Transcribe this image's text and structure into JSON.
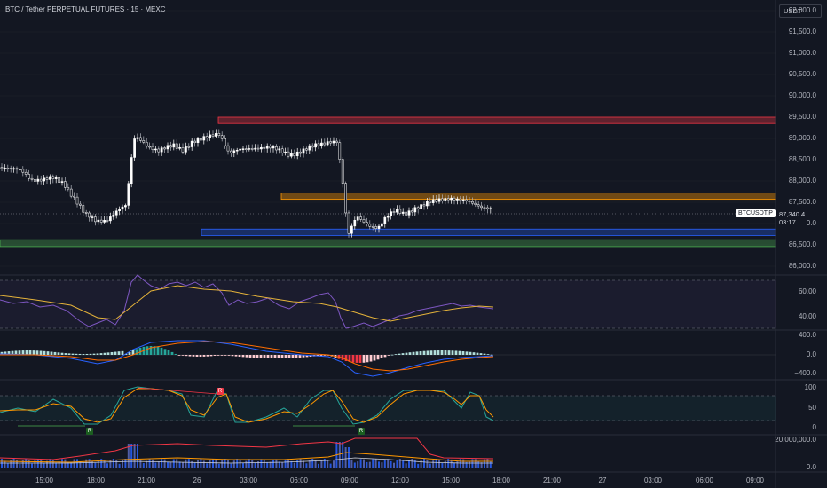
{
  "header": {
    "title": "BTC / Tether PERPETUAL FUTURES · 15 · MEXC",
    "currency_button": "USDT"
  },
  "price_axis": {
    "labels": [
      "92,000.0",
      "91,500.0",
      "91,000.0",
      "90,500.0",
      "90,000.0",
      "89,500.0",
      "89,000.0",
      "88,500.0",
      "88,000.0",
      "87,500.0",
      "87,000.0",
      "86,500.0",
      "86,000.0"
    ]
  },
  "last_price": {
    "symbol": "BTCUSDT.P",
    "price": "87,340.4",
    "countdown": "03:17"
  },
  "rsi_axis": {
    "labels": [
      "60.00",
      "40.00"
    ]
  },
  "macd_axis": {
    "labels": [
      "400.0",
      "0.0",
      "−400.0"
    ]
  },
  "stoch_axis": {
    "labels": [
      "100",
      "50",
      "0"
    ]
  },
  "volume_axis": {
    "labels": [
      "20,000,000.0",
      "0.0"
    ]
  },
  "time_axis": {
    "labels": [
      "15:00",
      "18:00",
      "21:00",
      "26",
      "03:00",
      "06:00",
      "09:00",
      "12:00",
      "15:00",
      "18:00",
      "21:00",
      "27",
      "03:00",
      "06:00",
      "09:00"
    ]
  },
  "signal_markers": [
    "R",
    "R",
    "R"
  ],
  "colors": {
    "background": "#131722",
    "up": "#ffffff",
    "zone_red": "#f23645",
    "zone_orange": "#ff9800",
    "zone_blue": "#2962ff",
    "zone_green": "#4caf50"
  },
  "chart_data": {
    "type": "candlestick",
    "title": "BTC / Tether PERPETUAL FUTURES · 15 · MEXC",
    "ylim": [
      86000,
      92000
    ],
    "last_price": 87340.4,
    "x_ticks": [
      "15:00",
      "18:00",
      "21:00",
      "26",
      "03:00",
      "06:00",
      "09:00",
      "12:00",
      "15:00",
      "18:00",
      "21:00",
      "27",
      "03:00",
      "06:00",
      "09:00"
    ],
    "path": [
      [
        0,
        88320
      ],
      [
        12,
        88260
      ],
      [
        24,
        88250
      ],
      [
        36,
        88050
      ],
      [
        48,
        88020
      ],
      [
        60,
        88050
      ],
      [
        72,
        87950
      ],
      [
        84,
        87600
      ],
      [
        96,
        87200
      ],
      [
        108,
        87050
      ],
      [
        120,
        87100
      ],
      [
        132,
        87300
      ],
      [
        142,
        87400
      ],
      [
        148,
        88500
      ],
      [
        152,
        89050
      ],
      [
        158,
        89000
      ],
      [
        166,
        88850
      ],
      [
        178,
        88680
      ],
      [
        186,
        88750
      ],
      [
        196,
        88850
      ],
      [
        206,
        88750
      ],
      [
        216,
        88900
      ],
      [
        226,
        88950
      ],
      [
        236,
        89050
      ],
      [
        246,
        89150
      ],
      [
        252,
        88950
      ],
      [
        258,
        88650
      ],
      [
        268,
        88700
      ],
      [
        278,
        88750
      ],
      [
        290,
        88800
      ],
      [
        302,
        88800
      ],
      [
        314,
        88700
      ],
      [
        326,
        88620
      ],
      [
        338,
        88700
      ],
      [
        350,
        88780
      ],
      [
        362,
        88850
      ],
      [
        372,
        88950
      ],
      [
        380,
        88950
      ],
      [
        386,
        88000
      ],
      [
        392,
        86700
      ],
      [
        402,
        87150
      ],
      [
        414,
        87000
      ],
      [
        426,
        86900
      ],
      [
        436,
        87150
      ],
      [
        446,
        87300
      ],
      [
        456,
        87250
      ],
      [
        466,
        87350
      ],
      [
        476,
        87400
      ],
      [
        486,
        87500
      ],
      [
        496,
        87580
      ],
      [
        506,
        87620
      ],
      [
        516,
        87550
      ],
      [
        526,
        87500
      ],
      [
        536,
        87450
      ],
      [
        546,
        87400
      ],
      [
        556,
        87340
      ]
    ],
    "zones": [
      {
        "color": "red",
        "low": 89350,
        "high": 89500
      },
      {
        "color": "orange",
        "low": 87570,
        "high": 87720
      },
      {
        "color": "blue",
        "low": 86720,
        "high": 86870
      },
      {
        "color": "green",
        "low": 86460,
        "high": 86620
      }
    ],
    "indicators": [
      "RSI",
      "MACD",
      "Stochastic",
      "Volume"
    ]
  }
}
